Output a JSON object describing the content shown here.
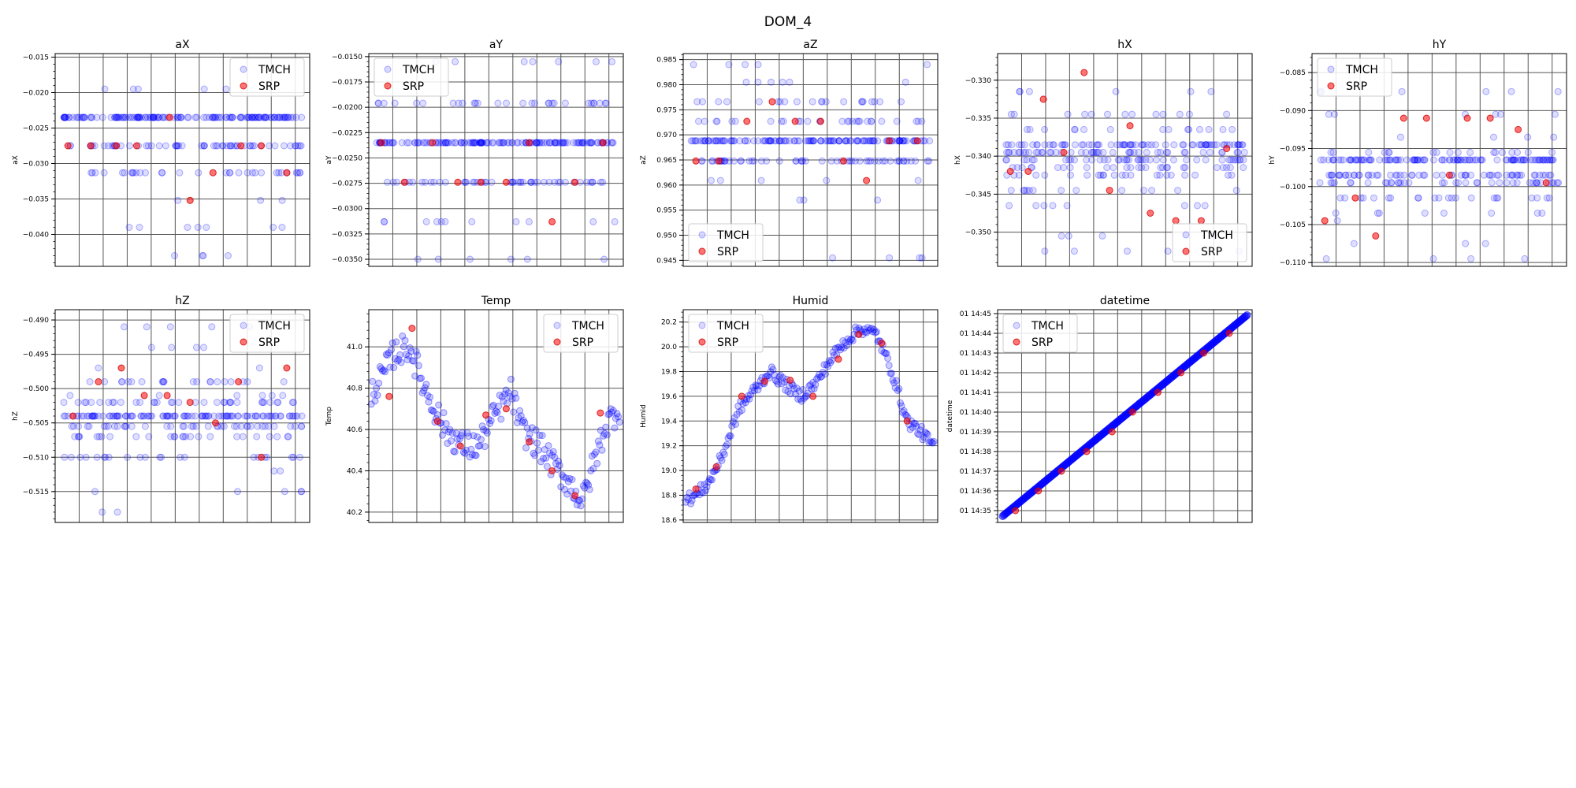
{
  "figure": {
    "title": "DOM_4"
  },
  "legend_labels": [
    "TMCH",
    "SRP"
  ],
  "colors": {
    "tmch": "#0000ff",
    "srp": "#ff0000",
    "grid": "#555555",
    "axis": "#000000"
  },
  "chart_data": [
    {
      "type": "scatter",
      "title": "aX",
      "ylabel": "aX",
      "ylim": [
        -0.0445,
        -0.0145
      ],
      "yticks": [
        -0.015,
        -0.02,
        -0.025,
        -0.03,
        -0.035,
        -0.04
      ],
      "ytick_labels": [
        "−0.015",
        "−0.020",
        "−0.025",
        "−0.030",
        "−0.035",
        "−0.040"
      ],
      "grid": true,
      "legend": "upper right",
      "series": [
        {
          "name": "TMCH",
          "levels": [
            -0.0235,
            -0.0275,
            -0.0313,
            -0.0352
          ],
          "sparse_levels": [
            -0.0195,
            -0.039,
            -0.043
          ],
          "n": 240
        },
        {
          "name": "SRP",
          "points": [
            [
              0.05,
              -0.0275
            ],
            [
              0.14,
              -0.0275
            ],
            [
              0.24,
              -0.0275
            ],
            [
              0.32,
              -0.0275
            ],
            [
              0.45,
              -0.0235
            ],
            [
              0.53,
              -0.0352
            ],
            [
              0.62,
              -0.0313
            ],
            [
              0.73,
              -0.0275
            ],
            [
              0.81,
              -0.0275
            ],
            [
              0.91,
              -0.0313
            ]
          ]
        }
      ]
    },
    {
      "type": "scatter",
      "title": "aY",
      "ylabel": "aY",
      "ylim": [
        -0.0357,
        -0.0147
      ],
      "yticks": [
        -0.015,
        -0.0175,
        -0.02,
        -0.0225,
        -0.025,
        -0.0275,
        -0.03,
        -0.0325,
        -0.035
      ],
      "ytick_labels": [
        "−0.0150",
        "−0.0175",
        "−0.0200",
        "−0.0225",
        "−0.0250",
        "−0.0275",
        "−0.0300",
        "−0.0325",
        "−0.0350"
      ],
      "grid": true,
      "legend": "upper left",
      "series": [
        {
          "name": "TMCH",
          "levels": [
            -0.0235,
            -0.0274,
            -0.0196,
            -0.0313
          ],
          "sparse_levels": [
            -0.0155,
            -0.035
          ],
          "n": 240
        },
        {
          "name": "SRP",
          "points": [
            [
              0.05,
              -0.0235
            ],
            [
              0.14,
              -0.0274
            ],
            [
              0.25,
              -0.0235
            ],
            [
              0.35,
              -0.0274
            ],
            [
              0.44,
              -0.0274
            ],
            [
              0.54,
              -0.0274
            ],
            [
              0.63,
              -0.0235
            ],
            [
              0.72,
              -0.0313
            ],
            [
              0.81,
              -0.0274
            ],
            [
              0.92,
              -0.0235
            ]
          ]
        }
      ]
    },
    {
      "type": "scatter",
      "title": "aZ",
      "ylabel": "aZ",
      "ylim": [
        0.9438,
        0.9862
      ],
      "yticks": [
        0.945,
        0.95,
        0.955,
        0.96,
        0.965,
        0.97,
        0.975,
        0.98,
        0.985
      ],
      "ytick_labels": [
        "0.945",
        "0.950",
        "0.955",
        "0.960",
        "0.965",
        "0.970",
        "0.975",
        "0.980",
        "0.985"
      ],
      "grid": true,
      "legend": "lower left",
      "series": [
        {
          "name": "TMCH",
          "levels": [
            0.9688,
            0.9648,
            0.9727,
            0.9766,
            0.9609
          ],
          "sparse_levels": [
            0.9805,
            0.957,
            0.984,
            0.9455
          ],
          "n": 240
        },
        {
          "name": "SRP",
          "points": [
            [
              0.05,
              0.9648
            ],
            [
              0.14,
              0.9648
            ],
            [
              0.25,
              0.9727
            ],
            [
              0.35,
              0.9766
            ],
            [
              0.44,
              0.9727
            ],
            [
              0.54,
              0.9727
            ],
            [
              0.63,
              0.9648
            ],
            [
              0.72,
              0.9609
            ],
            [
              0.81,
              0.9688
            ],
            [
              0.92,
              0.9688
            ]
          ]
        }
      ]
    },
    {
      "type": "scatter",
      "title": "hX",
      "ylabel": "hX",
      "ylim": [
        -0.3545,
        -0.3265
      ],
      "yticks": [
        -0.33,
        -0.335,
        -0.34,
        -0.345,
        -0.35
      ],
      "ytick_labels": [
        "−0.330",
        "−0.335",
        "−0.340",
        "−0.345",
        "−0.350"
      ],
      "grid": true,
      "legend": "lower right",
      "series": [
        {
          "name": "TMCH",
          "levels": [
            -0.3385,
            -0.3395,
            -0.3405,
            -0.3415,
            -0.3425,
            -0.3365,
            -0.3445,
            -0.3345,
            -0.3465,
            -0.3485
          ],
          "sparse_levels": [
            -0.3315,
            -0.3505,
            -0.3525
          ],
          "n": 260
        },
        {
          "name": "SRP",
          "points": [
            [
              0.05,
              -0.342
            ],
            [
              0.12,
              -0.342
            ],
            [
              0.18,
              -0.3325
            ],
            [
              0.26,
              -0.3395
            ],
            [
              0.34,
              -0.329
            ],
            [
              0.44,
              -0.3445
            ],
            [
              0.52,
              -0.336
            ],
            [
              0.6,
              -0.3475
            ],
            [
              0.7,
              -0.3485
            ],
            [
              0.8,
              -0.3485
            ],
            [
              0.9,
              -0.339
            ]
          ]
        }
      ]
    },
    {
      "type": "scatter",
      "title": "hY",
      "ylabel": "hY",
      "ylim": [
        -0.1105,
        -0.0825
      ],
      "yticks": [
        -0.085,
        -0.09,
        -0.095,
        -0.1,
        -0.105,
        -0.11
      ],
      "ytick_labels": [
        "−0.085",
        "−0.090",
        "−0.095",
        "−0.100",
        "−0.105",
        "−0.110"
      ],
      "grid": true,
      "legend": "upper left",
      "series": [
        {
          "name": "TMCH",
          "levels": [
            -0.0965,
            -0.0985,
            -0.0995,
            -0.1015,
            -0.0955,
            -0.0935,
            -0.1035,
            -0.1045
          ],
          "sparse_levels": [
            -0.0875,
            -0.1075,
            -0.0905,
            -0.1095
          ],
          "n": 260
        },
        {
          "name": "SRP",
          "points": [
            [
              0.05,
              -0.1045
            ],
            [
              0.17,
              -0.1015
            ],
            [
              0.25,
              -0.1065
            ],
            [
              0.36,
              -0.091
            ],
            [
              0.45,
              -0.091
            ],
            [
              0.54,
              -0.0985
            ],
            [
              0.61,
              -0.091
            ],
            [
              0.7,
              -0.091
            ],
            [
              0.81,
              -0.0925
            ],
            [
              0.92,
              -0.0995
            ]
          ]
        }
      ]
    },
    {
      "type": "scatter",
      "title": "hZ",
      "ylabel": "hZ",
      "ylim": [
        -0.5195,
        -0.4885
      ],
      "yticks": [
        -0.49,
        -0.495,
        -0.5,
        -0.505,
        -0.51,
        -0.515
      ],
      "ytick_labels": [
        "−0.490",
        "−0.495",
        "−0.500",
        "−0.505",
        "−0.510",
        "−0.515"
      ],
      "grid": true,
      "legend": "upper right",
      "series": [
        {
          "name": "TMCH",
          "levels": [
            -0.504,
            -0.5055,
            -0.502,
            -0.507,
            -0.499,
            -0.51,
            -0.501,
            -0.497,
            -0.512
          ],
          "sparse_levels": [
            -0.494,
            -0.515,
            -0.491,
            -0.518
          ],
          "n": 260
        },
        {
          "name": "SRP",
          "points": [
            [
              0.07,
              -0.504
            ],
            [
              0.17,
              -0.499
            ],
            [
              0.26,
              -0.497
            ],
            [
              0.35,
              -0.501
            ],
            [
              0.44,
              -0.501
            ],
            [
              0.53,
              -0.502
            ],
            [
              0.63,
              -0.505
            ],
            [
              0.72,
              -0.499
            ],
            [
              0.81,
              -0.51
            ],
            [
              0.91,
              -0.497
            ]
          ]
        }
      ]
    },
    {
      "type": "scatter",
      "title": "Temp",
      "ylabel": "Temp",
      "ylim": [
        40.15,
        41.18
      ],
      "yticks": [
        40.2,
        40.4,
        40.6,
        40.8,
        41.0
      ],
      "ytick_labels": [
        "40.2",
        "40.4",
        "40.6",
        "40.8",
        "41.0"
      ],
      "grid": true,
      "legend": "upper right",
      "series": [
        {
          "name": "TMCH",
          "curve": [
            [
              0.0,
              40.76
            ],
            [
              0.05,
              40.85
            ],
            [
              0.1,
              40.97
            ],
            [
              0.16,
              41.0
            ],
            [
              0.22,
              40.8
            ],
            [
              0.3,
              40.6
            ],
            [
              0.37,
              40.52
            ],
            [
              0.43,
              40.52
            ],
            [
              0.5,
              40.68
            ],
            [
              0.56,
              40.78
            ],
            [
              0.6,
              40.6
            ],
            [
              0.67,
              40.52
            ],
            [
              0.73,
              40.42
            ],
            [
              0.8,
              40.32
            ],
            [
              0.84,
              40.25
            ],
            [
              0.88,
              40.42
            ],
            [
              0.93,
              40.62
            ],
            [
              0.98,
              40.7
            ]
          ],
          "spread": 0.07,
          "n": 200
        },
        {
          "name": "SRP",
          "points": [
            [
              0.08,
              40.76
            ],
            [
              0.17,
              41.09
            ],
            [
              0.27,
              40.64
            ],
            [
              0.36,
              40.52
            ],
            [
              0.46,
              40.67
            ],
            [
              0.54,
              40.7
            ],
            [
              0.63,
              40.54
            ],
            [
              0.72,
              40.4
            ],
            [
              0.81,
              40.28
            ],
            [
              0.91,
              40.68
            ]
          ]
        }
      ]
    },
    {
      "type": "scatter",
      "title": "Humid",
      "ylabel": "Humid",
      "ylim": [
        18.58,
        20.3
      ],
      "yticks": [
        18.6,
        18.8,
        19.0,
        19.2,
        19.4,
        19.6,
        19.8,
        20.0,
        20.2
      ],
      "ytick_labels": [
        "18.6",
        "18.8",
        "19.0",
        "19.2",
        "19.4",
        "19.6",
        "19.8",
        "20.0",
        "20.2"
      ],
      "grid": true,
      "legend": "upper left",
      "series": [
        {
          "name": "TMCH",
          "curve": [
            [
              0.0,
              18.75
            ],
            [
              0.05,
              18.8
            ],
            [
              0.1,
              18.9
            ],
            [
              0.15,
              19.1
            ],
            [
              0.22,
              19.5
            ],
            [
              0.28,
              19.65
            ],
            [
              0.34,
              19.8
            ],
            [
              0.4,
              19.7
            ],
            [
              0.46,
              19.6
            ],
            [
              0.52,
              19.7
            ],
            [
              0.58,
              19.9
            ],
            [
              0.64,
              20.05
            ],
            [
              0.7,
              20.15
            ],
            [
              0.76,
              20.1
            ],
            [
              0.82,
              19.8
            ],
            [
              0.88,
              19.4
            ],
            [
              0.94,
              19.3
            ],
            [
              1.0,
              19.15
            ]
          ],
          "spread": 0.05,
          "n": 200
        },
        {
          "name": "SRP",
          "points": [
            [
              0.05,
              18.85
            ],
            [
              0.13,
              19.03
            ],
            [
              0.23,
              19.6
            ],
            [
              0.32,
              19.72
            ],
            [
              0.42,
              19.73
            ],
            [
              0.51,
              19.6
            ],
            [
              0.61,
              19.9
            ],
            [
              0.69,
              20.1
            ],
            [
              0.78,
              20.03
            ],
            [
              0.88,
              19.4
            ]
          ]
        }
      ]
    },
    {
      "type": "scatter",
      "title": "datetime",
      "ylabel": "datetime",
      "ylim": [
        34.4,
        45.2
      ],
      "yticks": [
        35,
        36,
        37,
        38,
        39,
        40,
        41,
        42,
        43,
        44,
        45
      ],
      "ytick_labels": [
        "01 14:35",
        "01 14:36",
        "01 14:37",
        "01 14:38",
        "01 14:39",
        "01 14:40",
        "01 14:41",
        "01 14:42",
        "01 14:43",
        "01 14:44",
        "01 14:45"
      ],
      "grid": true,
      "legend": "upper left",
      "series": [
        {
          "name": "TMCH",
          "line": [
            [
              0.02,
              34.72
            ],
            [
              0.98,
              44.92
            ]
          ],
          "n": 220
        },
        {
          "name": "SRP",
          "points": [
            [
              0.07,
              35.0
            ],
            [
              0.16,
              36.0
            ],
            [
              0.25,
              37.0
            ],
            [
              0.35,
              38.0
            ],
            [
              0.45,
              39.0
            ],
            [
              0.53,
              40.0
            ],
            [
              0.63,
              41.0
            ],
            [
              0.72,
              42.0
            ],
            [
              0.81,
              43.0
            ],
            [
              0.91,
              44.0
            ]
          ]
        }
      ]
    }
  ]
}
